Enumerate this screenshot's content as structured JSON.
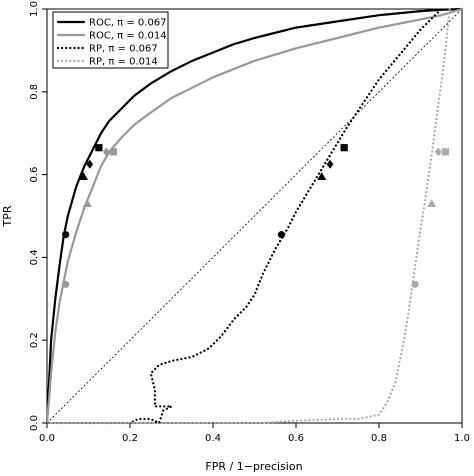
{
  "chart_data": {
    "type": "line",
    "xlabel": "FPR / 1−precision",
    "ylabel": "TPR",
    "xlim": [
      0,
      1
    ],
    "ylim": [
      0,
      1
    ],
    "xticks": [
      "0.0",
      "0.2",
      "0.4",
      "0.6",
      "0.8",
      "1.0"
    ],
    "yticks": [
      "0.0",
      "0.2",
      "0.4",
      "0.6",
      "0.8",
      "1.0"
    ],
    "grid": false,
    "legend_position": "top-left",
    "diagonal": true,
    "series": [
      {
        "name": "ROC, π = 0.067",
        "color": "#000000",
        "line": "solid",
        "x": [
          0,
          0.005,
          0.01,
          0.02,
          0.03,
          0.04,
          0.05,
          0.07,
          0.09,
          0.11,
          0.13,
          0.15,
          0.18,
          0.21,
          0.25,
          0.3,
          0.35,
          0.4,
          0.45,
          0.5,
          0.6,
          0.7,
          0.8,
          0.9,
          0.95,
          1.0
        ],
        "y": [
          0,
          0.1,
          0.2,
          0.3,
          0.38,
          0.45,
          0.5,
          0.57,
          0.62,
          0.66,
          0.7,
          0.73,
          0.76,
          0.79,
          0.82,
          0.85,
          0.875,
          0.895,
          0.915,
          0.93,
          0.955,
          0.97,
          0.985,
          0.995,
          0.998,
          1.0
        ]
      },
      {
        "name": "ROC, π = 0.014",
        "color": "#999999",
        "line": "solid",
        "x": [
          0,
          0.005,
          0.01,
          0.02,
          0.03,
          0.04,
          0.05,
          0.07,
          0.09,
          0.11,
          0.13,
          0.15,
          0.18,
          0.21,
          0.25,
          0.3,
          0.35,
          0.4,
          0.5,
          0.6,
          0.7,
          0.8,
          0.9,
          0.95,
          1.0
        ],
        "y": [
          0,
          0.06,
          0.12,
          0.22,
          0.29,
          0.34,
          0.39,
          0.46,
          0.52,
          0.57,
          0.62,
          0.655,
          0.69,
          0.72,
          0.75,
          0.785,
          0.81,
          0.835,
          0.875,
          0.905,
          0.93,
          0.955,
          0.975,
          0.985,
          1.0
        ]
      },
      {
        "name": "RP, π = 0.067",
        "color": "#000000",
        "line": "dotted",
        "x": [
          0.0,
          0.2,
          0.22,
          0.25,
          0.27,
          0.28,
          0.3,
          0.26,
          0.26,
          0.25,
          0.27,
          0.3,
          0.35,
          0.39,
          0.42,
          0.45,
          0.48,
          0.5,
          0.52,
          0.55,
          0.58,
          0.6,
          0.63,
          0.66,
          0.69,
          0.72,
          0.76,
          0.8,
          0.85,
          0.9,
          0.95
        ],
        "y": [
          0.0,
          0.0,
          0.01,
          0.01,
          0.0,
          0.03,
          0.04,
          0.04,
          0.08,
          0.12,
          0.14,
          0.15,
          0.16,
          0.18,
          0.21,
          0.25,
          0.28,
          0.31,
          0.36,
          0.42,
          0.47,
          0.51,
          0.56,
          0.61,
          0.66,
          0.71,
          0.77,
          0.83,
          0.89,
          0.95,
          1.0
        ]
      },
      {
        "name": "RP, π = 0.014",
        "color": "#aaaaaa",
        "line": "dotted",
        "x": [
          0.0,
          0.51,
          0.6,
          0.7,
          0.75,
          0.8,
          0.82,
          0.84,
          0.85,
          0.86,
          0.87,
          0.88,
          0.89,
          0.9,
          0.91,
          0.92,
          0.93,
          0.94,
          0.95,
          0.96,
          0.97
        ],
        "y": [
          0.0,
          0.0,
          0.005,
          0.01,
          0.01,
          0.02,
          0.05,
          0.1,
          0.15,
          0.2,
          0.26,
          0.33,
          0.4,
          0.47,
          0.53,
          0.6,
          0.67,
          0.75,
          0.82,
          0.9,
          1.0
        ]
      }
    ],
    "markers": [
      {
        "shape": "circle",
        "color": "#000000",
        "x": 0.045,
        "y": 0.455
      },
      {
        "shape": "triangle",
        "color": "#000000",
        "x": 0.088,
        "y": 0.595
      },
      {
        "shape": "diamond",
        "color": "#000000",
        "x": 0.103,
        "y": 0.625
      },
      {
        "shape": "square",
        "color": "#000000",
        "x": 0.125,
        "y": 0.665
      },
      {
        "shape": "circle",
        "color": "#999999",
        "x": 0.045,
        "y": 0.335
      },
      {
        "shape": "triangle",
        "color": "#999999",
        "x": 0.097,
        "y": 0.53
      },
      {
        "shape": "diamond",
        "color": "#999999",
        "x": 0.143,
        "y": 0.655
      },
      {
        "shape": "square",
        "color": "#999999",
        "x": 0.16,
        "y": 0.655
      },
      {
        "shape": "circle",
        "color": "#000000",
        "x": 0.565,
        "y": 0.455
      },
      {
        "shape": "triangle",
        "color": "#000000",
        "x": 0.662,
        "y": 0.595
      },
      {
        "shape": "diamond",
        "color": "#000000",
        "x": 0.682,
        "y": 0.625
      },
      {
        "shape": "square",
        "color": "#000000",
        "x": 0.716,
        "y": 0.665
      },
      {
        "shape": "circle",
        "color": "#aaaaaa",
        "x": 0.887,
        "y": 0.335
      },
      {
        "shape": "triangle",
        "color": "#aaaaaa",
        "x": 0.927,
        "y": 0.53
      },
      {
        "shape": "diamond",
        "color": "#aaaaaa",
        "x": 0.943,
        "y": 0.655
      },
      {
        "shape": "square",
        "color": "#aaaaaa",
        "x": 0.96,
        "y": 0.655
      }
    ]
  }
}
